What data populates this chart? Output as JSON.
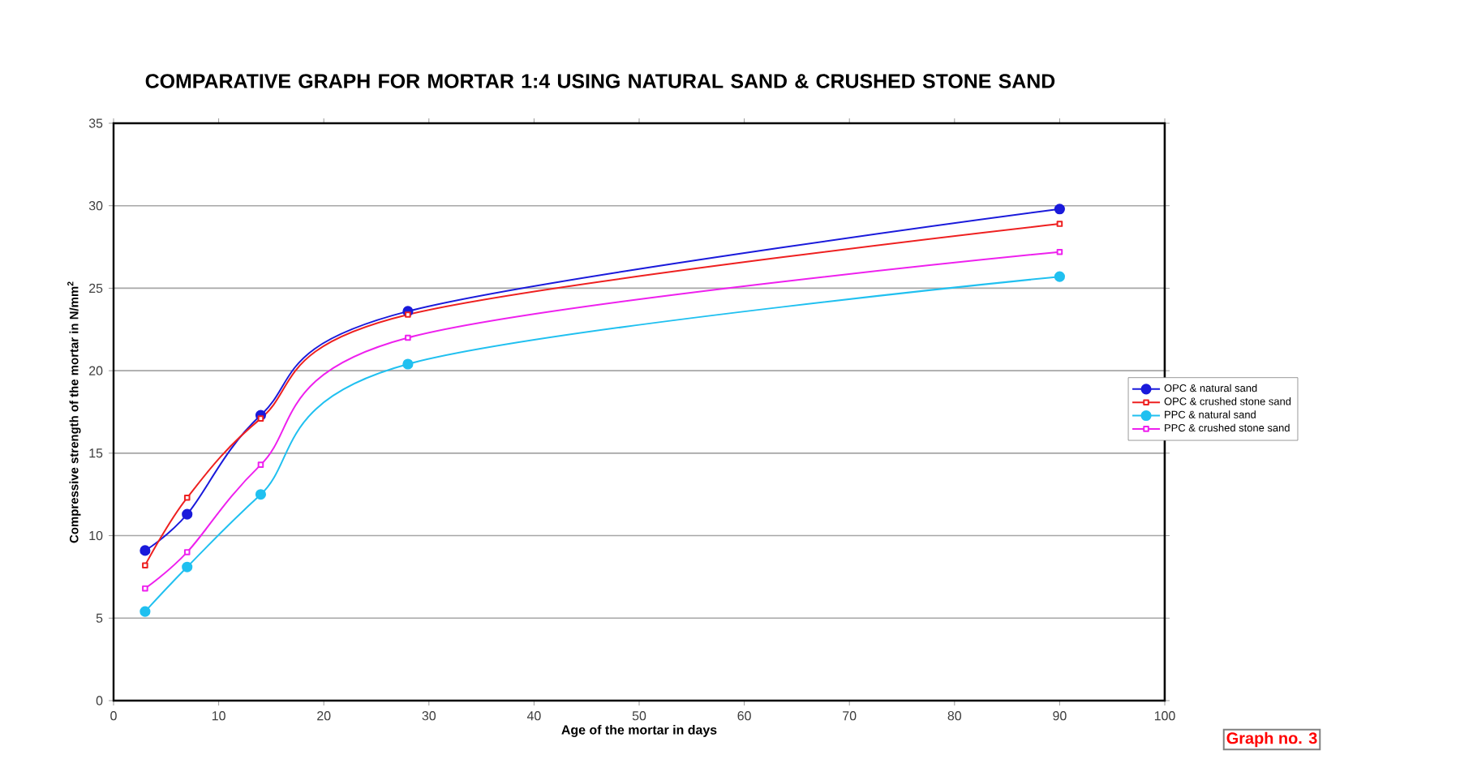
{
  "chart_data": {
    "type": "line",
    "title": "COMPARATIVE GRAPH FOR MORTAR 1:4 USING NATURAL SAND & CRUSHED STONE SAND",
    "xlabel": "Age of the mortar in days",
    "ylabel": "Compressive strength of the mortar in N/mm$^{2}$",
    "annotations": [
      "Graph no. 3"
    ],
    "x": [
      3,
      7,
      14,
      28,
      90
    ],
    "xlim": [
      0,
      100
    ],
    "xticks": [
      0,
      10,
      20,
      30,
      40,
      50,
      60,
      70,
      80,
      90,
      100
    ],
    "ylim": [
      0,
      35
    ],
    "yticks": [
      0,
      5,
      10,
      15,
      20,
      25,
      30,
      35
    ],
    "grid": "y",
    "legend": "right",
    "line_style": "solid",
    "series": [
      {
        "name": "OPC & natural sand",
        "color": "#1a1adb",
        "marker": "circle",
        "values": [
          9.1,
          11.3,
          17.3,
          23.6,
          29.8
        ]
      },
      {
        "name": "OPC & crushed stone sand",
        "color": "#ee2020",
        "marker": "square",
        "values": [
          8.2,
          12.3,
          17.1,
          23.4,
          28.9
        ]
      },
      {
        "name": "PPC & natural sand",
        "color": "#20c0f0",
        "marker": "circle",
        "values": [
          5.4,
          8.1,
          12.5,
          20.4,
          25.7
        ]
      },
      {
        "name": "PPC & crushed stone sand",
        "color": "#ee20ee",
        "marker": "square",
        "values": [
          6.8,
          9.0,
          14.3,
          22.0,
          27.2
        ]
      }
    ]
  }
}
